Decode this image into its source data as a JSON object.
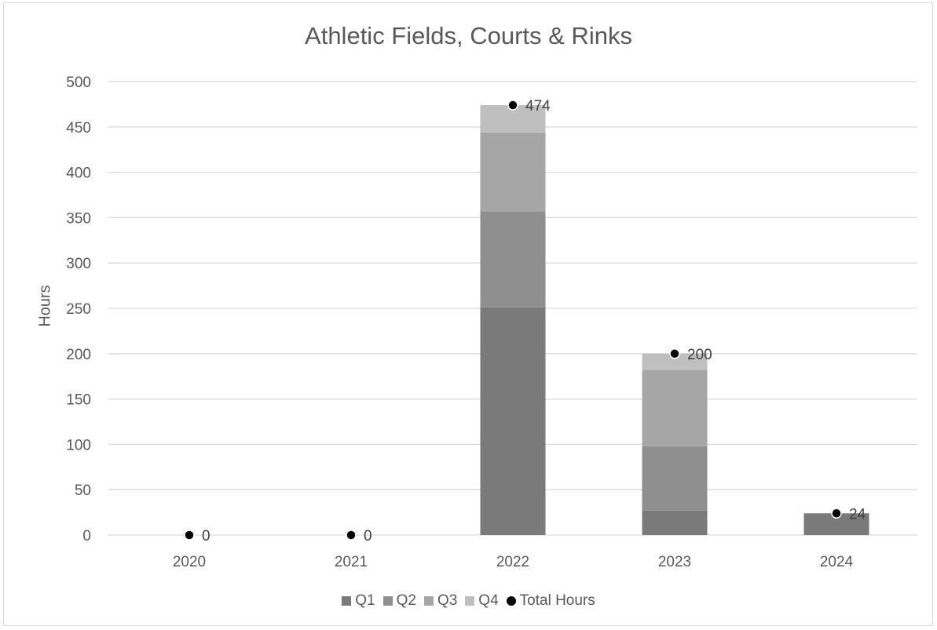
{
  "chart_data": {
    "type": "bar",
    "title": "Athletic Fields, Courts & Rinks",
    "xlabel": "",
    "ylabel": "Hours",
    "ylim": [
      0,
      500
    ],
    "yticks": [
      0,
      50,
      100,
      150,
      200,
      250,
      300,
      350,
      400,
      450,
      500
    ],
    "categories": [
      "2020",
      "2021",
      "2022",
      "2023",
      "2024"
    ],
    "stacked": true,
    "grid": true,
    "legend_position": "bottom",
    "series": [
      {
        "name": "Q1",
        "color": "#7a7a7a",
        "values": [
          0,
          0,
          251,
          27,
          24
        ]
      },
      {
        "name": "Q2",
        "color": "#8f8f8f",
        "values": [
          0,
          0,
          106,
          71,
          0
        ]
      },
      {
        "name": "Q3",
        "color": "#a6a6a6",
        "values": [
          0,
          0,
          87,
          84,
          0
        ]
      },
      {
        "name": "Q4",
        "color": "#bfbfbf",
        "values": [
          0,
          0,
          30,
          18,
          0
        ]
      }
    ],
    "line_series": {
      "name": "Total Hours",
      "type": "scatter",
      "color": "#000000",
      "values": [
        0,
        0,
        474,
        200,
        24
      ],
      "labels": [
        "0",
        "0",
        "474",
        "200",
        "24"
      ]
    }
  }
}
